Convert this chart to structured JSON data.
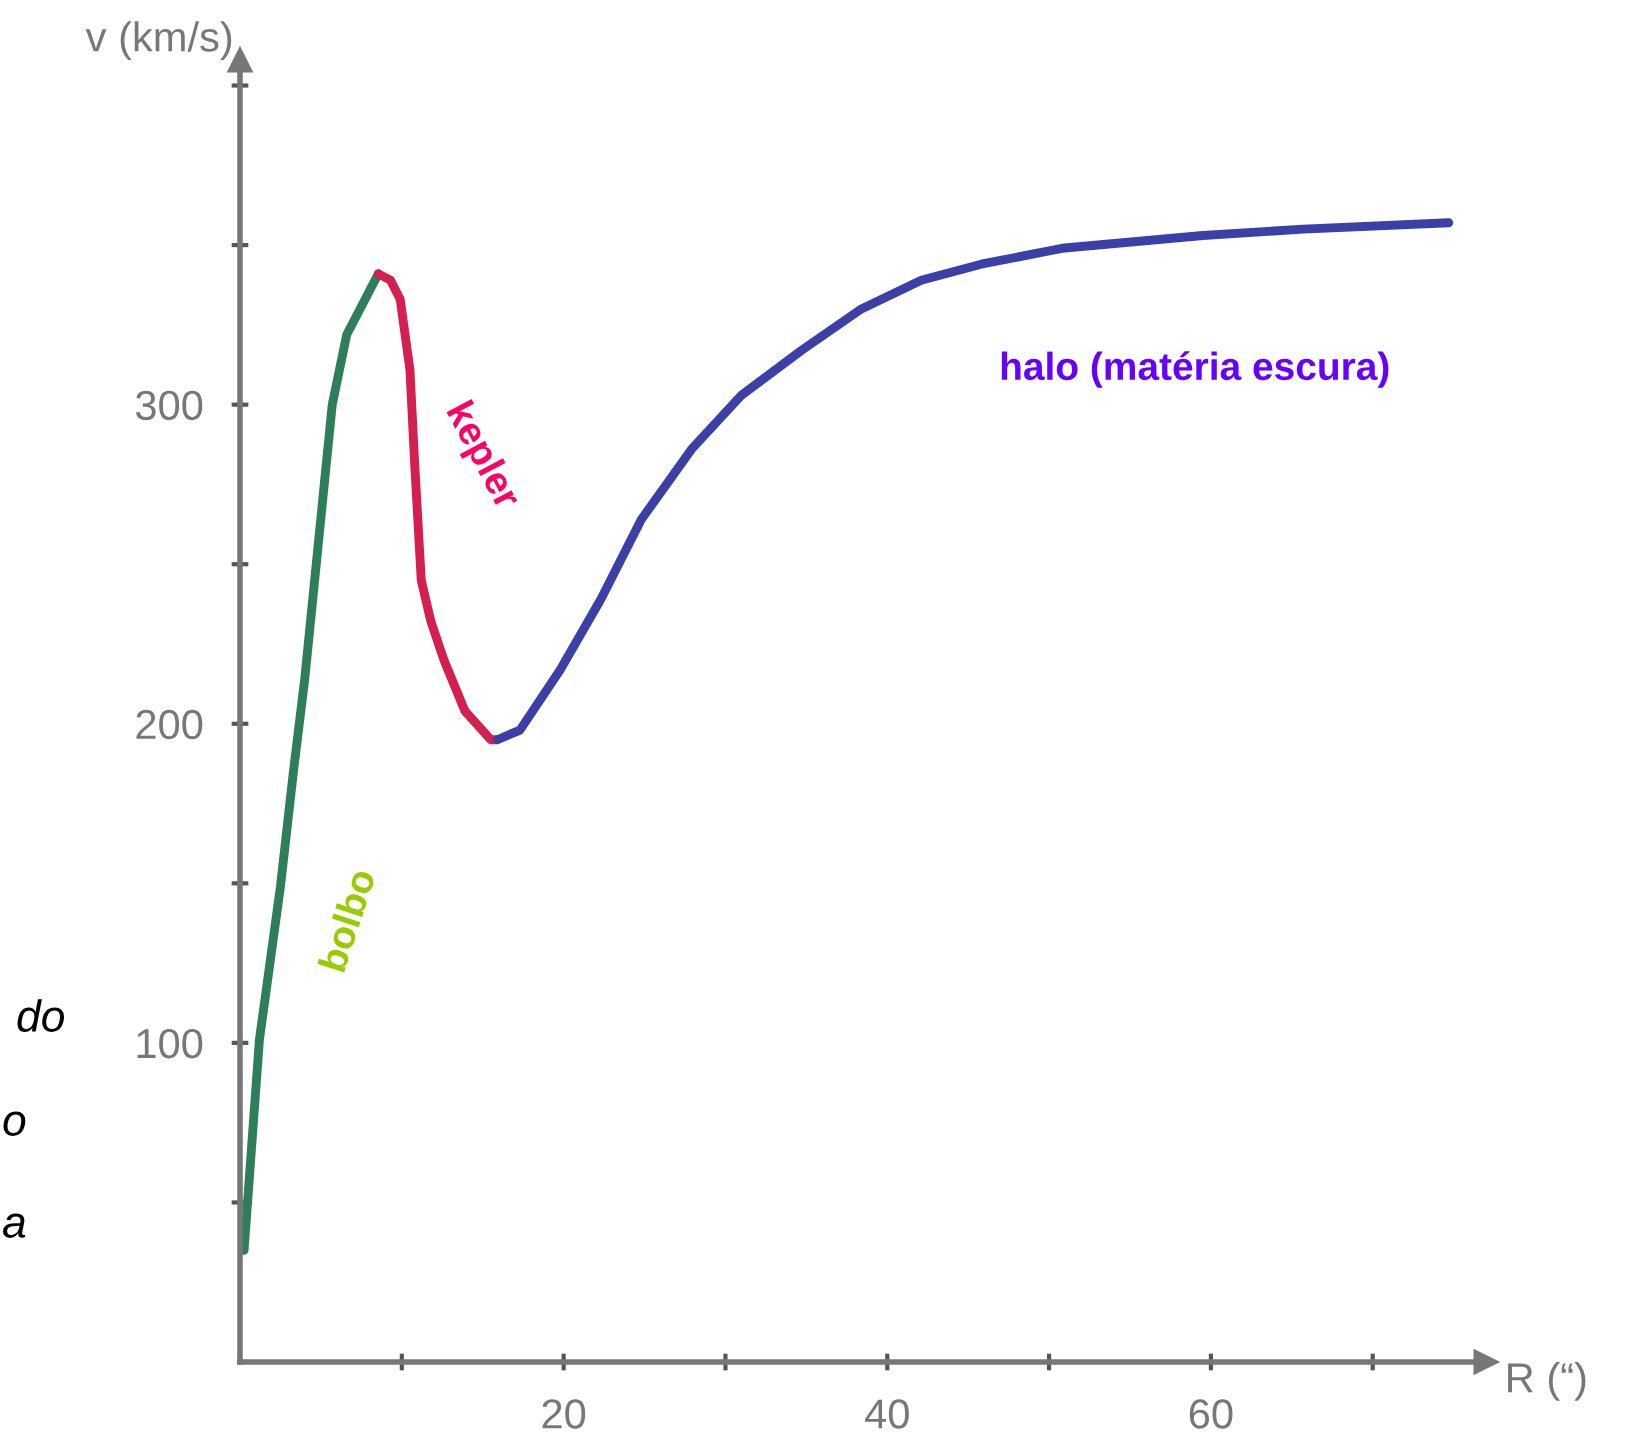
{
  "chart_data": {
    "type": "line",
    "xlabel": "R (“)",
    "ylabel": "v (km/s)",
    "xlim": [
      0,
      77
    ],
    "ylim": [
      0,
      408
    ],
    "xticks": [
      {
        "value": 10,
        "label": null
      },
      20,
      {
        "value": 30,
        "label": null
      },
      40,
      {
        "value": 50,
        "label": null
      },
      60,
      {
        "value": 70,
        "label": null
      }
    ],
    "yticks": [
      {
        "value": 50,
        "label": null
      },
      100,
      {
        "value": 150,
        "label": null
      },
      200,
      {
        "value": 250,
        "label": null
      },
      300,
      {
        "value": 350,
        "label": null
      },
      {
        "value": 400,
        "label": null
      }
    ],
    "grid": false,
    "legend": false,
    "marker": "none",
    "line_style": "solid",
    "series": [
      {
        "name": "bolbo",
        "color": "#2e7d5b",
        "x": [
          0.25,
          1.2,
          2.5,
          3.3,
          4,
          5.7,
          6.6,
          8.55
        ],
        "values": [
          35,
          101,
          149,
          185,
          214,
          300,
          322,
          341
        ]
      },
      {
        "name": "kepler",
        "color": "#d42050",
        "x": [
          8.55,
          9.3,
          9.9,
          10.5,
          10.8,
          11.2,
          11.8,
          12.6,
          13.9,
          15.5,
          15.9
        ],
        "values": [
          341,
          339,
          333,
          311,
          281,
          245,
          232,
          220,
          204,
          195,
          195
        ]
      },
      {
        "name": "halo (matéria escura)",
        "color": "#3b3fa8",
        "x": [
          15.9,
          17.3,
          19.8,
          22.3,
          24.8,
          27.9,
          31,
          34.7,
          38.4,
          42.1,
          45.8,
          50.8,
          59.5,
          65.7,
          74.7
        ],
        "values": [
          195,
          198,
          217,
          239,
          264,
          286,
          303,
          317,
          330,
          339,
          344,
          349,
          353,
          355,
          357
        ]
      }
    ],
    "annotations": [
      "do",
      "o",
      "a"
    ]
  }
}
